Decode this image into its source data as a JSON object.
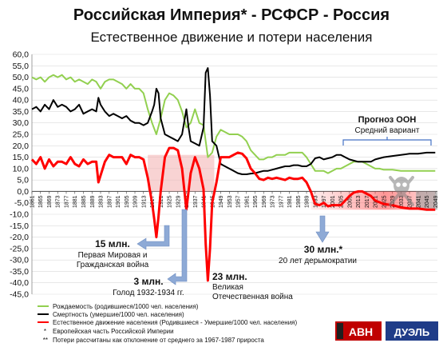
{
  "chart_data": {
    "type": "line",
    "title": "Российская Империя* - РСФСР - Россия",
    "subtitle": "Естественное движение и потери населения",
    "ylim": [
      -45,
      60
    ],
    "yticks": [
      "60,0",
      "55,0",
      "50,0",
      "45,0",
      "40,0",
      "35,0",
      "30,0",
      "25,0",
      "20,0",
      "15,0",
      "10,0",
      "5,0",
      "0,0",
      "-5,0",
      "-10,0",
      "-15,0",
      "-20,0",
      "-25,0",
      "-30,0",
      "-35,0",
      "-40,0",
      "-45,0"
    ],
    "xticks": [
      "1861",
      "1865",
      "1869",
      "1873",
      "1877",
      "1881",
      "1885",
      "1889",
      "1893",
      "1897",
      "1901",
      "1905",
      "1909",
      "1913",
      "1917",
      "1921",
      "1925",
      "1929",
      "1933",
      "1937",
      "1941",
      "1945",
      "1949",
      "1953",
      "1957",
      "1961",
      "1965",
      "1969",
      "1973",
      "1977",
      "1981",
      "1985",
      "1989",
      "1993",
      "1997",
      "2001",
      "2005",
      "2009",
      "2013",
      "2017",
      "2021",
      "2025",
      "2029",
      "2033",
      "2037",
      "2041",
      "2045",
      "2049"
    ],
    "series": [
      {
        "name": "Рождаемость (родившиеся/1000 чел. населения)",
        "color": "#92d050",
        "points": [
          [
            1861,
            50
          ],
          [
            1863,
            49
          ],
          [
            1865,
            50
          ],
          [
            1867,
            48
          ],
          [
            1869,
            50
          ],
          [
            1871,
            51
          ],
          [
            1873,
            50
          ],
          [
            1875,
            51
          ],
          [
            1877,
            49
          ],
          [
            1879,
            50
          ],
          [
            1881,
            48
          ],
          [
            1883,
            49
          ],
          [
            1885,
            48
          ],
          [
            1887,
            47
          ],
          [
            1889,
            49
          ],
          [
            1891,
            48
          ],
          [
            1893,
            45
          ],
          [
            1895,
            48
          ],
          [
            1897,
            49
          ],
          [
            1899,
            49
          ],
          [
            1901,
            48
          ],
          [
            1903,
            47
          ],
          [
            1905,
            45
          ],
          [
            1907,
            47
          ],
          [
            1909,
            45
          ],
          [
            1911,
            45
          ],
          [
            1913,
            43
          ],
          [
            1915,
            36
          ],
          [
            1917,
            30
          ],
          [
            1919,
            25
          ],
          [
            1921,
            32
          ],
          [
            1923,
            40
          ],
          [
            1925,
            43
          ],
          [
            1927,
            42
          ],
          [
            1929,
            40
          ],
          [
            1931,
            35
          ],
          [
            1933,
            28
          ],
          [
            1935,
            30
          ],
          [
            1937,
            36
          ],
          [
            1939,
            30
          ],
          [
            1941,
            29
          ],
          [
            1943,
            15
          ],
          [
            1945,
            17
          ],
          [
            1947,
            24
          ],
          [
            1949,
            27
          ],
          [
            1951,
            26
          ],
          [
            1953,
            25
          ],
          [
            1955,
            25
          ],
          [
            1957,
            25
          ],
          [
            1959,
            24
          ],
          [
            1961,
            22
          ],
          [
            1963,
            18
          ],
          [
            1965,
            16
          ],
          [
            1967,
            14
          ],
          [
            1969,
            14
          ],
          [
            1971,
            15
          ],
          [
            1973,
            15
          ],
          [
            1975,
            16
          ],
          [
            1977,
            16
          ],
          [
            1979,
            16
          ],
          [
            1981,
            17
          ],
          [
            1983,
            17
          ],
          [
            1985,
            17
          ],
          [
            1987,
            17
          ],
          [
            1989,
            15
          ],
          [
            1991,
            12
          ],
          [
            1993,
            9
          ],
          [
            1995,
            9
          ],
          [
            1997,
            9
          ],
          [
            1999,
            8
          ],
          [
            2001,
            9
          ],
          [
            2003,
            10
          ],
          [
            2005,
            10
          ],
          [
            2007,
            11
          ],
          [
            2009,
            12
          ],
          [
            2011,
            13
          ],
          [
            2013,
            13
          ],
          [
            2015,
            13
          ],
          [
            2017,
            12
          ],
          [
            2019,
            11
          ],
          [
            2021,
            10
          ],
          [
            2023,
            10
          ],
          [
            2025,
            9.5
          ],
          [
            2029,
            9.5
          ],
          [
            2033,
            9
          ],
          [
            2037,
            9
          ],
          [
            2041,
            9
          ],
          [
            2045,
            9
          ],
          [
            2049,
            9
          ]
        ]
      },
      {
        "name": "Смертность (умершие/1000 чел. населения)",
        "color": "#000000",
        "points": [
          [
            1861,
            36
          ],
          [
            1863,
            37
          ],
          [
            1865,
            35
          ],
          [
            1867,
            38
          ],
          [
            1869,
            36
          ],
          [
            1871,
            40
          ],
          [
            1873,
            37
          ],
          [
            1875,
            38
          ],
          [
            1877,
            37
          ],
          [
            1879,
            35
          ],
          [
            1881,
            36
          ],
          [
            1883,
            38
          ],
          [
            1885,
            34
          ],
          [
            1887,
            35
          ],
          [
            1889,
            36
          ],
          [
            1891,
            35
          ],
          [
            1892,
            41
          ],
          [
            1893,
            38
          ],
          [
            1895,
            35
          ],
          [
            1897,
            33
          ],
          [
            1899,
            34
          ],
          [
            1901,
            33
          ],
          [
            1903,
            32
          ],
          [
            1905,
            33
          ],
          [
            1907,
            31
          ],
          [
            1909,
            30
          ],
          [
            1911,
            30
          ],
          [
            1913,
            29
          ],
          [
            1915,
            30
          ],
          [
            1917,
            35
          ],
          [
            1918,
            38
          ],
          [
            1919,
            45
          ],
          [
            1920,
            43
          ],
          [
            1921,
            32
          ],
          [
            1923,
            25
          ],
          [
            1925,
            24
          ],
          [
            1927,
            23
          ],
          [
            1929,
            22
          ],
          [
            1931,
            25
          ],
          [
            1933,
            36
          ],
          [
            1934,
            28
          ],
          [
            1935,
            22
          ],
          [
            1937,
            21
          ],
          [
            1939,
            20
          ],
          [
            1941,
            28
          ],
          [
            1942,
            52
          ],
          [
            1943,
            54
          ],
          [
            1944,
            42
          ],
          [
            1945,
            22
          ],
          [
            1947,
            20
          ],
          [
            1949,
            12
          ],
          [
            1951,
            11
          ],
          [
            1953,
            10
          ],
          [
            1955,
            9
          ],
          [
            1957,
            8
          ],
          [
            1959,
            7.5
          ],
          [
            1961,
            7.5
          ],
          [
            1963,
            7.8
          ],
          [
            1965,
            8
          ],
          [
            1967,
            8.5
          ],
          [
            1969,
            9
          ],
          [
            1971,
            9
          ],
          [
            1973,
            9.5
          ],
          [
            1975,
            10
          ],
          [
            1977,
            10.5
          ],
          [
            1979,
            11
          ],
          [
            1981,
            11
          ],
          [
            1983,
            11.5
          ],
          [
            1985,
            11.5
          ],
          [
            1987,
            11
          ],
          [
            1989,
            11
          ],
          [
            1991,
            12
          ],
          [
            1993,
            14.5
          ],
          [
            1995,
            15
          ],
          [
            1997,
            14
          ],
          [
            1999,
            14.5
          ],
          [
            2001,
            15
          ],
          [
            2003,
            16
          ],
          [
            2005,
            16
          ],
          [
            2007,
            15
          ],
          [
            2009,
            14
          ],
          [
            2011,
            13.5
          ],
          [
            2013,
            13
          ],
          [
            2015,
            13
          ],
          [
            2017,
            13
          ],
          [
            2019,
            13
          ],
          [
            2021,
            14
          ],
          [
            2025,
            15
          ],
          [
            2029,
            15.5
          ],
          [
            2033,
            16
          ],
          [
            2037,
            16.5
          ],
          [
            2041,
            16.5
          ],
          [
            2045,
            17
          ],
          [
            2049,
            17
          ]
        ]
      },
      {
        "name": "Естественное движение населения (Родившиеся - Умершие/1000 чел. населения)",
        "color": "#ff0000",
        "points": [
          [
            1861,
            14
          ],
          [
            1863,
            12
          ],
          [
            1865,
            15
          ],
          [
            1867,
            10
          ],
          [
            1869,
            14
          ],
          [
            1871,
            11
          ],
          [
            1873,
            13
          ],
          [
            1875,
            13
          ],
          [
            1877,
            12
          ],
          [
            1879,
            15
          ],
          [
            1881,
            12
          ],
          [
            1883,
            11
          ],
          [
            1885,
            14
          ],
          [
            1887,
            12
          ],
          [
            1889,
            13
          ],
          [
            1891,
            13
          ],
          [
            1892,
            4
          ],
          [
            1893,
            7
          ],
          [
            1895,
            13
          ],
          [
            1897,
            16
          ],
          [
            1899,
            15
          ],
          [
            1901,
            15
          ],
          [
            1903,
            15
          ],
          [
            1905,
            12
          ],
          [
            1907,
            16
          ],
          [
            1909,
            15
          ],
          [
            1911,
            15
          ],
          [
            1913,
            14
          ],
          [
            1915,
            6
          ],
          [
            1917,
            -5
          ],
          [
            1918,
            -12
          ],
          [
            1919,
            -20
          ],
          [
            1920,
            -11
          ],
          [
            1921,
            0
          ],
          [
            1923,
            15
          ],
          [
            1925,
            19
          ],
          [
            1927,
            19
          ],
          [
            1929,
            18
          ],
          [
            1931,
            10
          ],
          [
            1933,
            -8
          ],
          [
            1934,
            0
          ],
          [
            1935,
            8
          ],
          [
            1937,
            15
          ],
          [
            1939,
            10
          ],
          [
            1941,
            1
          ],
          [
            1942,
            -23
          ],
          [
            1943,
            -39
          ],
          [
            1944,
            -25
          ],
          [
            1945,
            -5
          ],
          [
            1947,
            4
          ],
          [
            1949,
            15
          ],
          [
            1951,
            15
          ],
          [
            1953,
            15
          ],
          [
            1955,
            16
          ],
          [
            1957,
            17
          ],
          [
            1959,
            16.5
          ],
          [
            1961,
            14.5
          ],
          [
            1963,
            10
          ],
          [
            1965,
            8
          ],
          [
            1967,
            5.5
          ],
          [
            1969,
            5
          ],
          [
            1971,
            6
          ],
          [
            1973,
            5.5
          ],
          [
            1975,
            6
          ],
          [
            1977,
            5.5
          ],
          [
            1979,
            5
          ],
          [
            1981,
            6
          ],
          [
            1983,
            5.5
          ],
          [
            1985,
            5.5
          ],
          [
            1987,
            6
          ],
          [
            1989,
            4
          ],
          [
            1991,
            0
          ],
          [
            1993,
            -5.5
          ],
          [
            1995,
            -6
          ],
          [
            1997,
            -5
          ],
          [
            1999,
            -6.5
          ],
          [
            2001,
            -6
          ],
          [
            2003,
            -6
          ],
          [
            2005,
            -6
          ],
          [
            2007,
            -4
          ],
          [
            2009,
            -2
          ],
          [
            2011,
            -0.5
          ],
          [
            2013,
            0
          ],
          [
            2015,
            0
          ],
          [
            2017,
            -1
          ],
          [
            2019,
            -2
          ],
          [
            2021,
            -4
          ],
          [
            2025,
            -5.5
          ],
          [
            2029,
            -6
          ],
          [
            2033,
            -7
          ],
          [
            2037,
            -7.5
          ],
          [
            2041,
            -7.5
          ],
          [
            2045,
            -8
          ],
          [
            2049,
            -8
          ]
        ]
      }
    ]
  },
  "annotations": {
    "forecast_title": "Прогноз ООН",
    "forecast_sub": "Средний вариант",
    "ann1_value": "15 млн.",
    "ann1_line1": "Первая Мировая и",
    "ann1_line2": "Гражданская война",
    "ann2_value": "3 млн.",
    "ann2_text": "Голод 1932-1934 гг.",
    "ann3_value": "23 млн.",
    "ann3_line1": "Великая",
    "ann3_line2": "Отечественная война",
    "ann4_value": "30 млн.*",
    "ann4_text": "20 лет дерьмократии"
  },
  "legend": {
    "birth": "Рождаемость (родившиеся/1000 чел. населения)",
    "death": "Смертность (умершие/1000 чел. населения)",
    "natural": "Естественное движение населения (Родившиеся - Умершие/1000 чел. населения)",
    "note1": "Европейская часть Российской Империи",
    "note2": "Потери рассчитаны как отклонение от среднего за 1967-1987 прироста",
    "note1_mark": "*",
    "note2_mark": "**"
  },
  "logos": {
    "avn": "АВН",
    "duel": "ДУЭЛЬ"
  },
  "colors": {
    "birth": "#92d050",
    "death": "#000000",
    "natural": "#ff0000",
    "arrow": "#8eaad6",
    "forecast_bracket": "#4472c4"
  }
}
